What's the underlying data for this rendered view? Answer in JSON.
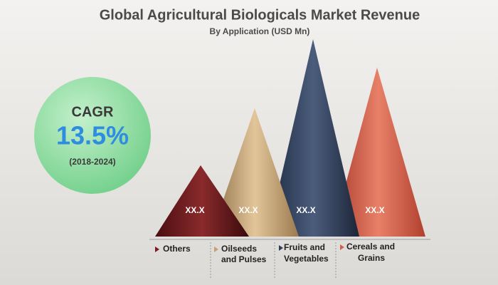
{
  "header": {
    "title": "Global Agricultural Biologicals Market Revenue",
    "subtitle": "By Application (USD Mn)"
  },
  "cagr": {
    "label": "CAGR",
    "value": "13.5%",
    "period": "(2018-2024)"
  },
  "segments": [
    {
      "label_lines": [
        "Others"
      ],
      "value_label": "XX.X"
    },
    {
      "label_lines": [
        "Oilseeds",
        "and Pulses"
      ],
      "value_label": "XX.X"
    },
    {
      "label_lines": [
        "Fruits and",
        "Vegetables"
      ],
      "value_label": "XX.X"
    },
    {
      "label_lines": [
        "Cereals and",
        "Grains"
      ],
      "value_label": "XX.X"
    }
  ]
}
